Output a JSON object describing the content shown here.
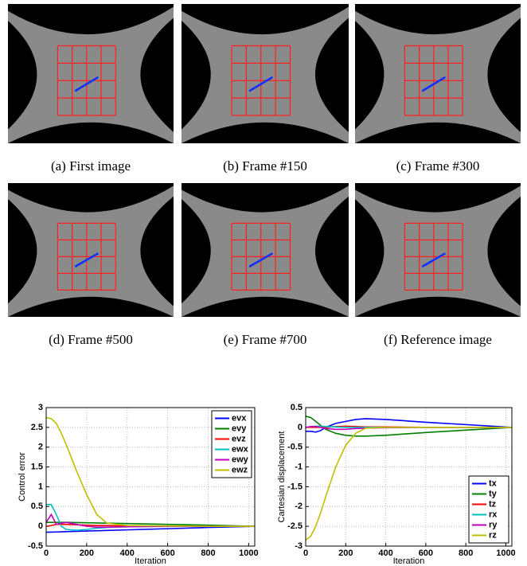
{
  "figure": {
    "panels": [
      {
        "caption": "(a) First image"
      },
      {
        "caption": "(b) Frame #150"
      },
      {
        "caption": "(c) Frame #300"
      },
      {
        "caption": "(d) Frame #500"
      },
      {
        "caption": "(e) Frame #700"
      },
      {
        "caption": "(f) Reference image"
      }
    ]
  },
  "chart_data": [
    {
      "type": "line",
      "x_label": "Iteration",
      "y_label": "Control error",
      "x": [
        0,
        25,
        50,
        75,
        100,
        150,
        200,
        250,
        300,
        400,
        600,
        800,
        1030
      ],
      "xlim": [
        0,
        1030
      ],
      "xticks": [
        0,
        200,
        400,
        600,
        800,
        1000
      ],
      "ylim": [
        -0.5,
        3
      ],
      "yticks": [
        -0.5,
        0,
        0.5,
        1,
        1.5,
        2,
        2.5,
        3
      ],
      "grid": true,
      "legend": "upper right",
      "series": [
        {
          "name": "evx",
          "color": "#0000ff",
          "values": [
            -0.15,
            -0.146,
            -0.143,
            -0.14,
            -0.135,
            -0.128,
            -0.12,
            -0.113,
            -0.105,
            -0.09,
            -0.06,
            -0.03,
            0
          ]
        },
        {
          "name": "evy",
          "color": "#008000",
          "values": [
            0.1,
            0.1,
            0.1,
            0.1,
            0.1,
            0.095,
            0.09,
            0.085,
            0.08,
            0.07,
            0.05,
            0.03,
            0
          ]
        },
        {
          "name": "evz",
          "color": "#ff0000",
          "values": [
            0,
            0.02,
            0.05,
            0.05,
            0.05,
            0.04,
            0.03,
            0.02,
            0.02,
            0.01,
            0,
            0,
            0
          ]
        },
        {
          "name": "ewx",
          "color": "#00bfbf",
          "values": [
            0.55,
            0.55,
            0.3,
            0,
            -0.08,
            -0.1,
            -0.08,
            -0.05,
            -0.03,
            -0.01,
            0,
            0,
            0
          ]
        },
        {
          "name": "ewy",
          "color": "#bf00bf",
          "values": [
            0.1,
            0.3,
            0.05,
            0.08,
            0.1,
            0.05,
            0,
            -0.02,
            -0.02,
            -0.01,
            0,
            0,
            0
          ]
        },
        {
          "name": "ewz",
          "color": "#bfbf00",
          "values": [
            2.75,
            2.72,
            2.6,
            2.35,
            2.05,
            1.4,
            0.8,
            0.3,
            0.08,
            0.02,
            0.01,
            0,
            0
          ]
        }
      ]
    },
    {
      "type": "line",
      "x_label": "Iteration",
      "y_label": "Cartesian displacement",
      "x": [
        0,
        25,
        50,
        75,
        100,
        150,
        200,
        250,
        300,
        400,
        600,
        800,
        1030
      ],
      "xlim": [
        0,
        1030
      ],
      "xticks": [
        0,
        200,
        400,
        600,
        800,
        1000
      ],
      "ylim": [
        -3,
        0.5
      ],
      "yticks": [
        -3,
        -2.5,
        -2,
        -1.5,
        -1,
        -0.5,
        0,
        0.5
      ],
      "grid": true,
      "legend": "lower right",
      "series": [
        {
          "name": "tx",
          "color": "#0000ff",
          "values": [
            -0.1,
            -0.1,
            -0.12,
            -0.08,
            0,
            0.1,
            0.15,
            0.2,
            0.22,
            0.2,
            0.13,
            0.07,
            0
          ]
        },
        {
          "name": "ty",
          "color": "#008000",
          "values": [
            0.28,
            0.25,
            0.15,
            0.05,
            -0.05,
            -0.15,
            -0.2,
            -0.22,
            -0.22,
            -0.2,
            -0.13,
            -0.07,
            0
          ]
        },
        {
          "name": "tz",
          "color": "#ff0000",
          "values": [
            0,
            0,
            0,
            0,
            0,
            0.02,
            0.03,
            0.02,
            0.01,
            0.01,
            0,
            0,
            0
          ]
        },
        {
          "name": "rx",
          "color": "#00bfbf",
          "values": [
            0,
            0.02,
            0.03,
            0.03,
            0.02,
            0.01,
            0,
            0,
            0,
            0,
            0,
            0,
            0
          ]
        },
        {
          "name": "ry",
          "color": "#bf00bf",
          "values": [
            0,
            0.02,
            0.02,
            0,
            -0.03,
            -0.05,
            -0.05,
            -0.03,
            -0.02,
            -0.01,
            0,
            0,
            0
          ]
        },
        {
          "name": "rz",
          "color": "#bfbf00",
          "values": [
            -2.85,
            -2.75,
            -2.5,
            -2.15,
            -1.75,
            -1,
            -0.45,
            -0.15,
            -0.02,
            0,
            0,
            0,
            0
          ]
        }
      ]
    }
  ]
}
